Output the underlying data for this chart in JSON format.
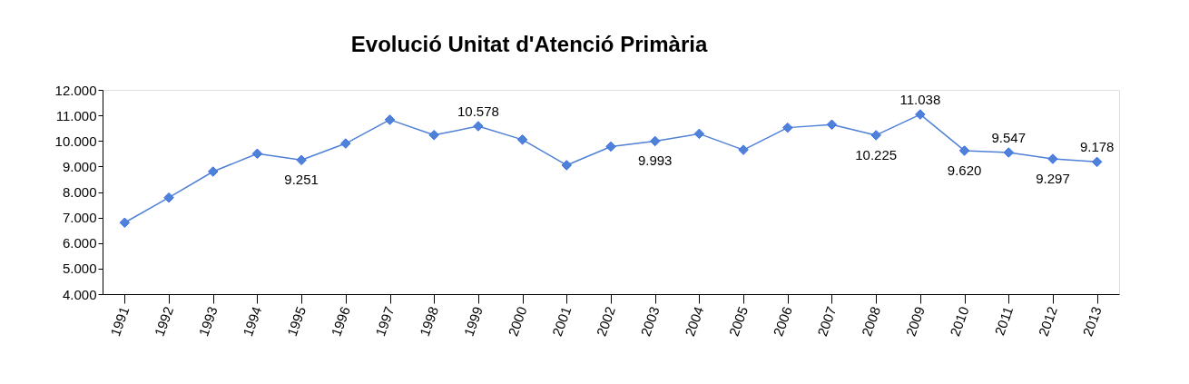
{
  "chart_data": {
    "type": "line",
    "title": "Evolució Unitat d'Atenció Primària",
    "categories": [
      "1991",
      "1992",
      "1993",
      "1994",
      "1995",
      "1996",
      "1997",
      "1998",
      "1999",
      "2000",
      "2001",
      "2002",
      "2003",
      "2004",
      "2005",
      "2006",
      "2007",
      "2008",
      "2009",
      "2010",
      "2011",
      "2012",
      "2013"
    ],
    "series": [
      {
        "color": "#4f81d6",
        "values": [
          6800,
          7780,
          8800,
          9500,
          9251,
          9900,
          10830,
          10230,
          10578,
          10050,
          9050,
          9780,
          9993,
          10280,
          9650,
          10520,
          10640,
          10225,
          11038,
          9620,
          9547,
          9297,
          9178
        ],
        "value_labels": [
          null,
          null,
          null,
          null,
          "9.251",
          null,
          null,
          null,
          "10.578",
          null,
          null,
          null,
          "9.993",
          null,
          null,
          null,
          null,
          "10.225",
          "11.038",
          "9.620",
          "9.547",
          "9.297",
          "9.178"
        ]
      }
    ],
    "ylim": [
      4000,
      12000
    ],
    "yticks": [
      {
        "value": 4000,
        "label": "4.000"
      },
      {
        "value": 5000,
        "label": "5.000"
      },
      {
        "value": 6000,
        "label": "6.000"
      },
      {
        "value": 7000,
        "label": "7.000"
      },
      {
        "value": 8000,
        "label": "8.000"
      },
      {
        "value": 9000,
        "label": "9.000"
      },
      {
        "value": 10000,
        "label": "10.000"
      },
      {
        "value": 11000,
        "label": "11.000"
      },
      {
        "value": 12000,
        "label": "12.000"
      }
    ],
    "marker": "diamond",
    "line_style": "solid",
    "grid": false
  }
}
